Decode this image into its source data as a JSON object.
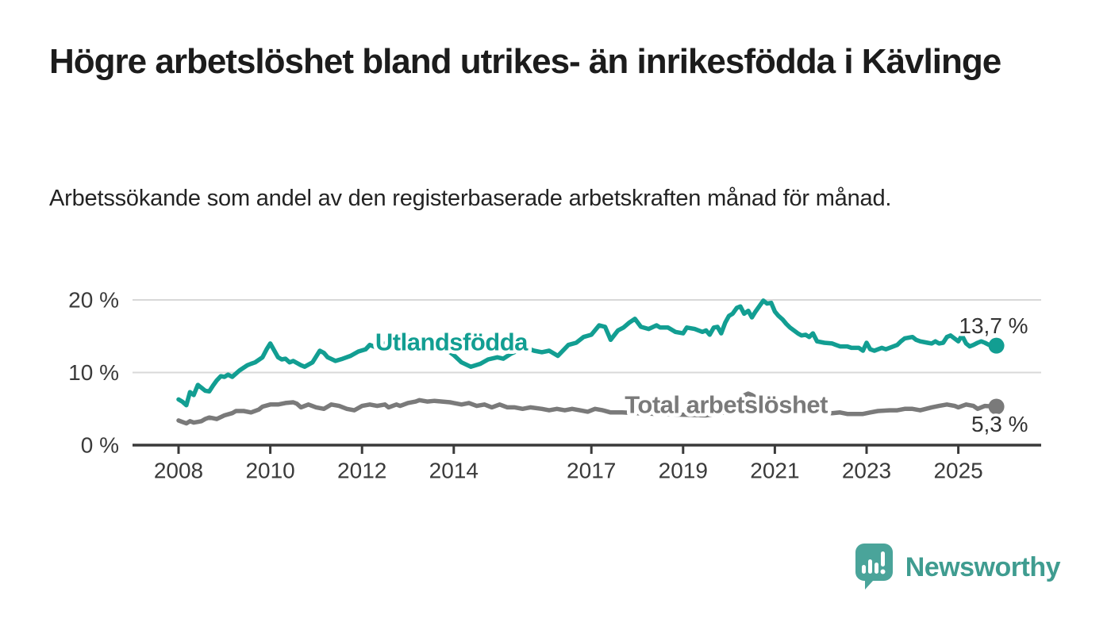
{
  "header": {
    "title": "Högre arbetslöshet bland utrikes- än inrikesfödda i Kävlinge",
    "subtitle": "Arbetssökande som andel av den registerbaserade arbetskraften månad för månad."
  },
  "chart_data": {
    "type": "line",
    "title": "Högre arbetslöshet bland utrikes- än inrikesfödda i Kävlinge",
    "xlabel": "",
    "ylabel": "Arbetssökande som andel av den registerbaserade arbetskraften",
    "unit": "%",
    "grid": "horizontal",
    "legend_position": "inline-labels",
    "xlim": [
      2007.0,
      2026.8
    ],
    "ylim": [
      0,
      22.5
    ],
    "yticks": [
      {
        "value": 0,
        "label": "0 %"
      },
      {
        "value": 10,
        "label": "10 %"
      },
      {
        "value": 20,
        "label": "20 %"
      }
    ],
    "xticks": [
      {
        "value": 2008,
        "label": "2008"
      },
      {
        "value": 2010,
        "label": "2010"
      },
      {
        "value": 2012,
        "label": "2012"
      },
      {
        "value": 2014,
        "label": "2014"
      },
      {
        "value": 2017,
        "label": "2017"
      },
      {
        "value": 2019,
        "label": "2019"
      },
      {
        "value": 2021,
        "label": "2021"
      },
      {
        "value": 2023,
        "label": "2023"
      },
      {
        "value": 2025,
        "label": "2025"
      }
    ],
    "series": [
      {
        "name": "Total arbetslöshet",
        "color": "#7a7a7a",
        "end_label": "5,3 %",
        "end_value": 5.3,
        "end_label_position": "below",
        "label_anchor": {
          "x": 2019.94,
          "y": 5.57
        },
        "points": [
          [
            2008.0,
            3.4
          ],
          [
            2008.08,
            3.2
          ],
          [
            2008.17,
            3.0
          ],
          [
            2008.25,
            3.3
          ],
          [
            2008.33,
            3.1
          ],
          [
            2008.42,
            3.2
          ],
          [
            2008.5,
            3.3
          ],
          [
            2008.58,
            3.6
          ],
          [
            2008.67,
            3.8
          ],
          [
            2008.75,
            3.7
          ],
          [
            2008.83,
            3.6
          ],
          [
            2009.0,
            4.1
          ],
          [
            2009.17,
            4.4
          ],
          [
            2009.25,
            4.7
          ],
          [
            2009.42,
            4.7
          ],
          [
            2009.58,
            4.5
          ],
          [
            2009.75,
            4.9
          ],
          [
            2009.83,
            5.3
          ],
          [
            2010.0,
            5.6
          ],
          [
            2010.17,
            5.6
          ],
          [
            2010.33,
            5.8
          ],
          [
            2010.5,
            5.9
          ],
          [
            2010.58,
            5.7
          ],
          [
            2010.67,
            5.2
          ],
          [
            2010.83,
            5.6
          ],
          [
            2011.0,
            5.2
          ],
          [
            2011.17,
            5.0
          ],
          [
            2011.33,
            5.6
          ],
          [
            2011.5,
            5.4
          ],
          [
            2011.67,
            5.0
          ],
          [
            2011.83,
            4.8
          ],
          [
            2012.0,
            5.4
          ],
          [
            2012.17,
            5.6
          ],
          [
            2012.33,
            5.4
          ],
          [
            2012.5,
            5.6
          ],
          [
            2012.58,
            5.2
          ],
          [
            2012.75,
            5.6
          ],
          [
            2012.83,
            5.4
          ],
          [
            2013.0,
            5.8
          ],
          [
            2013.17,
            6.0
          ],
          [
            2013.25,
            6.2
          ],
          [
            2013.42,
            6.0
          ],
          [
            2013.58,
            6.1
          ],
          [
            2013.75,
            6.0
          ],
          [
            2013.92,
            5.9
          ],
          [
            2014.0,
            5.8
          ],
          [
            2014.17,
            5.6
          ],
          [
            2014.33,
            5.8
          ],
          [
            2014.5,
            5.4
          ],
          [
            2014.67,
            5.6
          ],
          [
            2014.83,
            5.2
          ],
          [
            2015.0,
            5.6
          ],
          [
            2015.17,
            5.2
          ],
          [
            2015.33,
            5.2
          ],
          [
            2015.5,
            5.0
          ],
          [
            2015.67,
            5.2
          ],
          [
            2015.92,
            5.0
          ],
          [
            2016.08,
            4.8
          ],
          [
            2016.25,
            5.0
          ],
          [
            2016.42,
            4.8
          ],
          [
            2016.58,
            5.0
          ],
          [
            2016.75,
            4.8
          ],
          [
            2016.92,
            4.6
          ],
          [
            2017.08,
            5.0
          ],
          [
            2017.25,
            4.8
          ],
          [
            2017.42,
            4.5
          ],
          [
            2017.67,
            4.5
          ],
          [
            2018.0,
            4.4
          ],
          [
            2018.5,
            4.3
          ],
          [
            2019.0,
            4.2
          ],
          [
            2019.5,
            4.1
          ],
          [
            2020.0,
            4.6
          ],
          [
            2020.25,
            6.6
          ],
          [
            2020.42,
            7.1
          ],
          [
            2020.5,
            6.9
          ],
          [
            2020.67,
            6.2
          ],
          [
            2020.83,
            5.8
          ],
          [
            2021.0,
            5.4
          ],
          [
            2021.33,
            5.0
          ],
          [
            2021.67,
            4.7
          ],
          [
            2022.0,
            4.5
          ],
          [
            2022.25,
            4.4
          ],
          [
            2022.42,
            4.5
          ],
          [
            2022.58,
            4.3
          ],
          [
            2022.75,
            4.3
          ],
          [
            2022.92,
            4.3
          ],
          [
            2023.08,
            4.5
          ],
          [
            2023.25,
            4.7
          ],
          [
            2023.5,
            4.8
          ],
          [
            2023.67,
            4.8
          ],
          [
            2023.83,
            5.0
          ],
          [
            2024.0,
            5.0
          ],
          [
            2024.17,
            4.8
          ],
          [
            2024.42,
            5.2
          ],
          [
            2024.58,
            5.4
          ],
          [
            2024.75,
            5.6
          ],
          [
            2024.92,
            5.4
          ],
          [
            2025.0,
            5.2
          ],
          [
            2025.17,
            5.6
          ],
          [
            2025.33,
            5.4
          ],
          [
            2025.42,
            5.0
          ],
          [
            2025.58,
            5.4
          ],
          [
            2025.83,
            5.3
          ]
        ]
      },
      {
        "name": "Utlandsfödda",
        "color": "#129e92",
        "end_label": "13,7 %",
        "end_value": 13.7,
        "end_label_position": "above",
        "label_anchor": {
          "x": 2013.95,
          "y": 14.2
        },
        "points": [
          [
            2008.0,
            6.3
          ],
          [
            2008.08,
            6.0
          ],
          [
            2008.17,
            5.5
          ],
          [
            2008.25,
            7.3
          ],
          [
            2008.33,
            6.9
          ],
          [
            2008.42,
            8.3
          ],
          [
            2008.5,
            7.9
          ],
          [
            2008.58,
            7.5
          ],
          [
            2008.67,
            7.4
          ],
          [
            2008.75,
            8.2
          ],
          [
            2008.83,
            8.9
          ],
          [
            2008.92,
            9.5
          ],
          [
            2009.0,
            9.4
          ],
          [
            2009.08,
            9.7
          ],
          [
            2009.17,
            9.4
          ],
          [
            2009.33,
            10.3
          ],
          [
            2009.5,
            11.0
          ],
          [
            2009.58,
            11.2
          ],
          [
            2009.67,
            11.4
          ],
          [
            2009.83,
            12.1
          ],
          [
            2009.92,
            13.2
          ],
          [
            2010.0,
            14.0
          ],
          [
            2010.17,
            12.1
          ],
          [
            2010.25,
            11.8
          ],
          [
            2010.33,
            11.9
          ],
          [
            2010.42,
            11.4
          ],
          [
            2010.5,
            11.6
          ],
          [
            2010.67,
            11.0
          ],
          [
            2010.75,
            10.8
          ],
          [
            2010.92,
            11.4
          ],
          [
            2011.08,
            13.0
          ],
          [
            2011.17,
            12.7
          ],
          [
            2011.25,
            12.1
          ],
          [
            2011.42,
            11.6
          ],
          [
            2011.58,
            11.9
          ],
          [
            2011.75,
            12.3
          ],
          [
            2011.92,
            12.9
          ],
          [
            2012.08,
            13.2
          ],
          [
            2012.17,
            13.8
          ],
          [
            2012.33,
            13.4
          ],
          [
            2012.5,
            14.0
          ],
          [
            2012.75,
            14.5
          ],
          [
            2013.0,
            15.0
          ],
          [
            2013.25,
            14.6
          ],
          [
            2013.5,
            14.3
          ],
          [
            2013.75,
            13.6
          ],
          [
            2014.0,
            12.4
          ],
          [
            2014.17,
            11.4
          ],
          [
            2014.37,
            10.8
          ],
          [
            2014.58,
            11.2
          ],
          [
            2014.75,
            11.8
          ],
          [
            2014.95,
            12.1
          ],
          [
            2015.08,
            11.9
          ],
          [
            2015.25,
            12.6
          ],
          [
            2015.42,
            13.1
          ],
          [
            2015.58,
            13.4
          ],
          [
            2015.75,
            13.0
          ],
          [
            2015.92,
            12.8
          ],
          [
            2016.08,
            13.0
          ],
          [
            2016.27,
            12.3
          ],
          [
            2016.5,
            13.8
          ],
          [
            2016.67,
            14.1
          ],
          [
            2016.83,
            14.9
          ],
          [
            2017.0,
            15.2
          ],
          [
            2017.17,
            16.5
          ],
          [
            2017.3,
            16.3
          ],
          [
            2017.42,
            14.5
          ],
          [
            2017.58,
            15.8
          ],
          [
            2017.7,
            16.2
          ],
          [
            2017.83,
            16.9
          ],
          [
            2017.95,
            17.4
          ],
          [
            2018.08,
            16.3
          ],
          [
            2018.25,
            16.0
          ],
          [
            2018.42,
            16.5
          ],
          [
            2018.5,
            16.2
          ],
          [
            2018.67,
            16.2
          ],
          [
            2018.83,
            15.6
          ],
          [
            2019.0,
            15.4
          ],
          [
            2019.08,
            16.2
          ],
          [
            2019.25,
            16.0
          ],
          [
            2019.42,
            15.6
          ],
          [
            2019.5,
            15.8
          ],
          [
            2019.58,
            15.2
          ],
          [
            2019.67,
            16.2
          ],
          [
            2019.75,
            16.3
          ],
          [
            2019.83,
            15.4
          ],
          [
            2019.92,
            16.9
          ],
          [
            2020.0,
            17.8
          ],
          [
            2020.08,
            18.1
          ],
          [
            2020.17,
            18.9
          ],
          [
            2020.25,
            19.1
          ],
          [
            2020.33,
            18.1
          ],
          [
            2020.42,
            18.5
          ],
          [
            2020.5,
            17.6
          ],
          [
            2020.58,
            18.4
          ],
          [
            2020.67,
            19.2
          ],
          [
            2020.75,
            19.9
          ],
          [
            2020.83,
            19.5
          ],
          [
            2020.92,
            19.6
          ],
          [
            2021.0,
            18.4
          ],
          [
            2021.08,
            17.8
          ],
          [
            2021.17,
            17.3
          ],
          [
            2021.25,
            16.7
          ],
          [
            2021.33,
            16.2
          ],
          [
            2021.5,
            15.4
          ],
          [
            2021.58,
            15.1
          ],
          [
            2021.67,
            15.2
          ],
          [
            2021.75,
            14.9
          ],
          [
            2021.83,
            15.4
          ],
          [
            2021.92,
            14.3
          ],
          [
            2022.08,
            14.1
          ],
          [
            2022.25,
            14.0
          ],
          [
            2022.33,
            13.8
          ],
          [
            2022.42,
            13.6
          ],
          [
            2022.58,
            13.6
          ],
          [
            2022.67,
            13.4
          ],
          [
            2022.83,
            13.4
          ],
          [
            2022.92,
            13.0
          ],
          [
            2023.0,
            14.1
          ],
          [
            2023.08,
            13.2
          ],
          [
            2023.17,
            13.0
          ],
          [
            2023.33,
            13.4
          ],
          [
            2023.42,
            13.2
          ],
          [
            2023.5,
            13.4
          ],
          [
            2023.67,
            13.8
          ],
          [
            2023.75,
            14.3
          ],
          [
            2023.83,
            14.7
          ],
          [
            2024.0,
            14.9
          ],
          [
            2024.08,
            14.5
          ],
          [
            2024.17,
            14.3
          ],
          [
            2024.33,
            14.1
          ],
          [
            2024.42,
            14.0
          ],
          [
            2024.5,
            14.3
          ],
          [
            2024.58,
            14.0
          ],
          [
            2024.67,
            14.1
          ],
          [
            2024.75,
            14.9
          ],
          [
            2024.83,
            15.1
          ],
          [
            2025.0,
            14.3
          ],
          [
            2025.08,
            15.1
          ],
          [
            2025.17,
            14.0
          ],
          [
            2025.25,
            13.6
          ],
          [
            2025.33,
            13.8
          ],
          [
            2025.42,
            14.1
          ],
          [
            2025.5,
            14.3
          ],
          [
            2025.58,
            14.1
          ],
          [
            2025.67,
            13.8
          ],
          [
            2025.83,
            13.7
          ]
        ]
      }
    ]
  },
  "footer": {
    "brand": "Newsworthy"
  },
  "colors": {
    "accent_teal": "#129e92",
    "series_gray": "#7a7a7a",
    "axis": "#3a3a3a",
    "gridline": "#d8d8d8",
    "value_label": "#333333",
    "logo_teal": "#4aa49a",
    "wordmark_teal": "#3f9c90"
  }
}
